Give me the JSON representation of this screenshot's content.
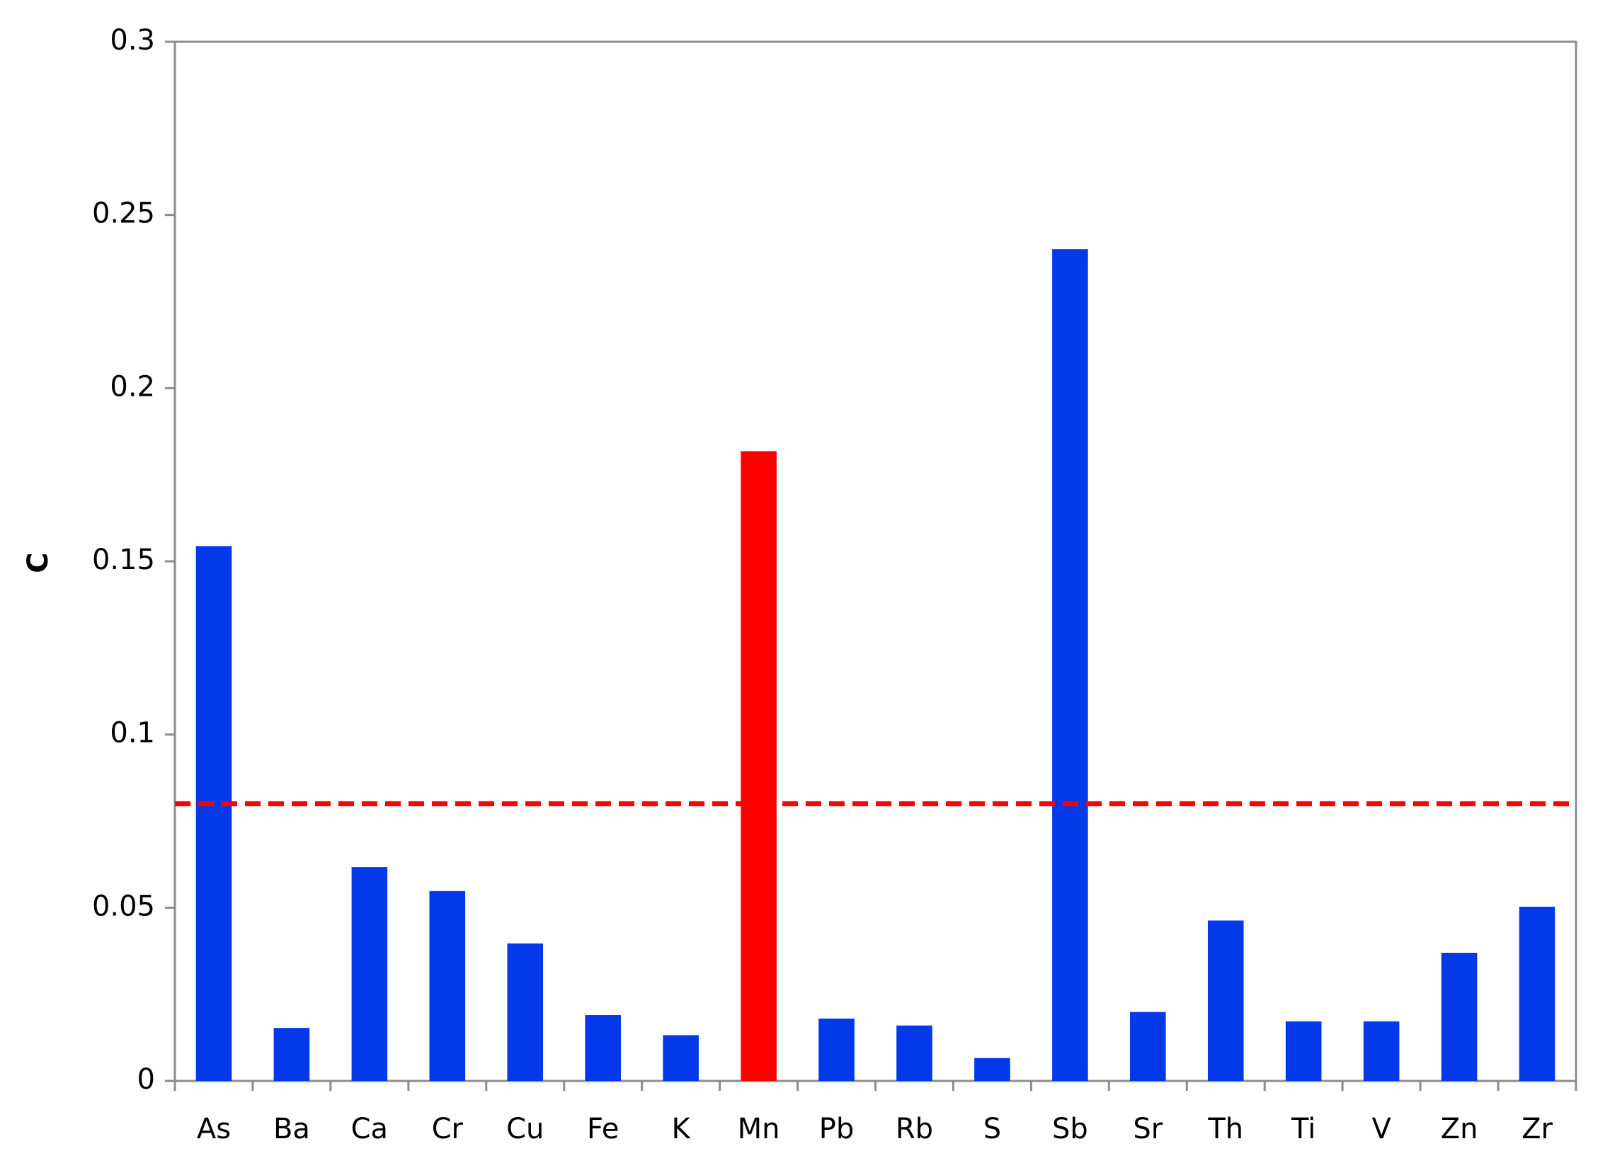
{
  "chart_data": {
    "type": "bar",
    "y_label": "C",
    "categories": [
      "As",
      "Ba",
      "Ca",
      "Cr",
      "Cu",
      "Fe",
      "K",
      "Mn",
      "Pb",
      "Rb",
      "S",
      "Sb",
      "Sr",
      "Th",
      "Ti",
      "V",
      "Zn",
      "Zr"
    ],
    "values": [
      0.1544,
      0.0153,
      0.0617,
      0.0548,
      0.0397,
      0.019,
      0.0132,
      0.1818,
      0.018,
      0.016,
      0.0066,
      0.2401,
      0.0199,
      0.0463,
      0.0172,
      0.0172,
      0.037,
      0.0503
    ],
    "colors": [
      "#0339e8",
      "#0339e8",
      "#0339e8",
      "#0339e8",
      "#0339e8",
      "#0339e8",
      "#0339e8",
      "#ff0000",
      "#0339e8",
      "#0339e8",
      "#0339e8",
      "#0339e8",
      "#0339e8",
      "#0339e8",
      "#0339e8",
      "#0339e8",
      "#0339e8",
      "#0339e8"
    ],
    "threshold": {
      "value": 0.08,
      "color": "#ff0000",
      "dashed": true
    },
    "ylim": [
      0,
      0.3
    ],
    "yticks": [
      0,
      0.05,
      0.1,
      0.15,
      0.2,
      0.25,
      0.3
    ],
    "grid": false
  }
}
